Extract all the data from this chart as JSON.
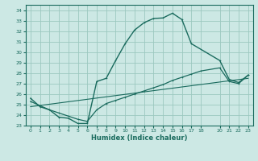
{
  "xlabel": "Humidex (Indice chaleur)",
  "bg_color": "#cce8e4",
  "grid_color": "#9cc8c0",
  "line_color": "#1a6b5e",
  "xlim": [
    -0.5,
    23.5
  ],
  "ylim": [
    23,
    34.5
  ],
  "xticks": [
    0,
    1,
    2,
    3,
    4,
    5,
    6,
    7,
    8,
    9,
    10,
    11,
    12,
    13,
    14,
    15,
    16,
    17,
    18,
    20,
    21,
    22,
    23
  ],
  "xtick_labels": [
    "0",
    "1",
    "2",
    "3",
    "4",
    "5",
    "6",
    "7",
    "8",
    "9",
    "10",
    "11",
    "12",
    "13",
    "14",
    "15",
    "16",
    "17",
    "18",
    "20",
    "21",
    "22",
    "23"
  ],
  "yticks": [
    23,
    24,
    25,
    26,
    27,
    28,
    29,
    30,
    31,
    32,
    33,
    34
  ],
  "line1_x": [
    0,
    1,
    2,
    3,
    4,
    5,
    6,
    7,
    8,
    9,
    10,
    11,
    12,
    13,
    14,
    15,
    16,
    17,
    20,
    21,
    22,
    23
  ],
  "line1_y": [
    25.6,
    24.8,
    24.5,
    23.8,
    23.7,
    23.2,
    23.2,
    27.2,
    27.5,
    29.2,
    30.8,
    32.1,
    32.8,
    33.2,
    33.25,
    33.7,
    33.1,
    30.8,
    29.2,
    27.4,
    27.1,
    27.8
  ],
  "line2_x": [
    0,
    1,
    2,
    3,
    4,
    5,
    6,
    7,
    8,
    9,
    10,
    11,
    12,
    13,
    14,
    15,
    16,
    17,
    18,
    20,
    21,
    22,
    23
  ],
  "line2_y": [
    25.3,
    24.9,
    24.5,
    24.2,
    23.9,
    23.6,
    23.4,
    24.5,
    25.1,
    25.4,
    25.7,
    26.0,
    26.3,
    26.6,
    26.9,
    27.3,
    27.6,
    27.9,
    28.2,
    28.5,
    27.2,
    27.0,
    27.8
  ],
  "line3_x": [
    0,
    23
  ],
  "line3_y": [
    24.8,
    27.5
  ]
}
